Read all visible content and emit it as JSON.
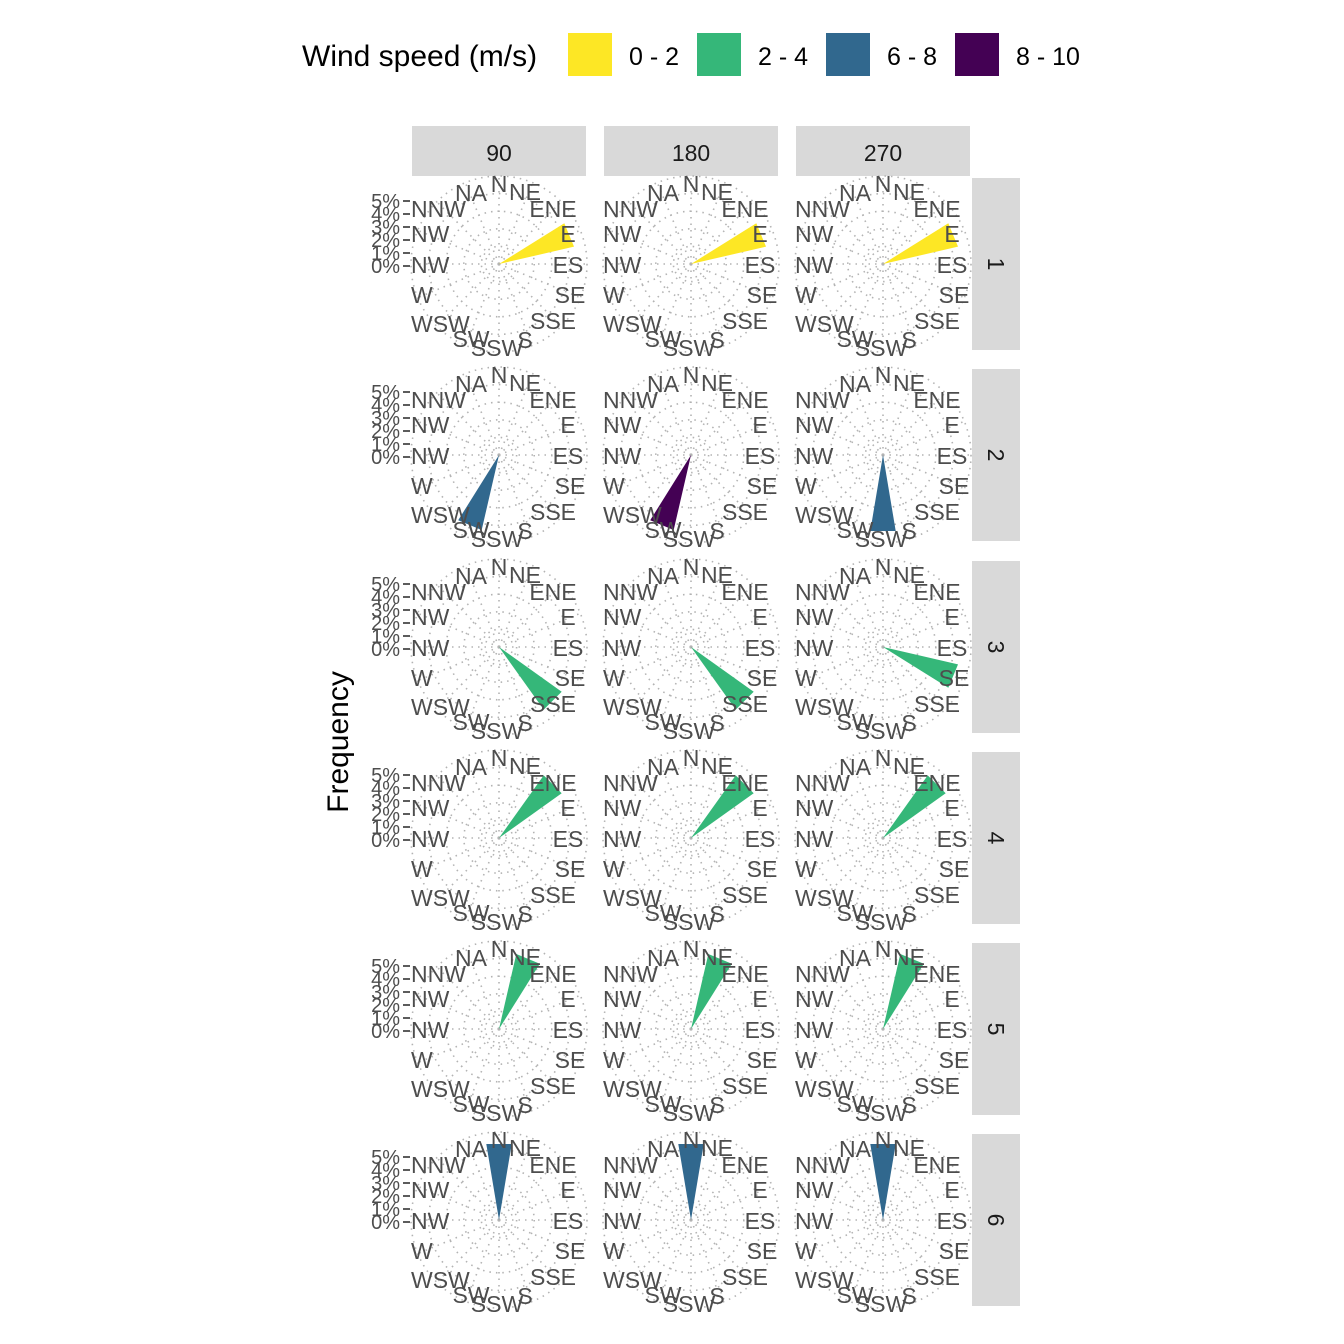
{
  "chart_data": {
    "type": "windrose-facet-grid",
    "legend": {
      "title": "Wind speed (m/s)",
      "position": "top",
      "items": [
        {
          "label": "0 - 2",
          "color": "#FDE725"
        },
        {
          "label": "2 - 4",
          "color": "#35B779"
        },
        {
          "label": "6 - 8",
          "color": "#31688E"
        },
        {
          "label": "8 - 10",
          "color": "#440154"
        }
      ]
    },
    "ylabel": "Frequency",
    "radial_ticks": [
      "0%",
      "1%",
      "2%",
      "3%",
      "4%",
      "5%"
    ],
    "rmax_percent": 6,
    "direction_labels": [
      "N",
      "NE",
      "ENE",
      "E",
      "ES",
      "SE",
      "SSE",
      "S",
      "SSW",
      "SW",
      "WSW",
      "W",
      "NW",
      "NW",
      "NNW",
      "NA"
    ],
    "grid": "dotted",
    "col_labels": [
      "90",
      "180",
      "270"
    ],
    "row_labels": [
      "1",
      "2",
      "3",
      "4",
      "5",
      "6"
    ],
    "panels": [
      {
        "row": "1",
        "col": "90",
        "direction_deg": 67.5,
        "frequency_percent": 5.0,
        "speed_bin": "0 - 2"
      },
      {
        "row": "1",
        "col": "180",
        "direction_deg": 67.5,
        "frequency_percent": 5.0,
        "speed_bin": "0 - 2"
      },
      {
        "row": "1",
        "col": "270",
        "direction_deg": 67.5,
        "frequency_percent": 5.0,
        "speed_bin": "0 - 2"
      },
      {
        "row": "2",
        "col": "90",
        "direction_deg": 202.5,
        "frequency_percent": 5.0,
        "speed_bin": "6 - 8"
      },
      {
        "row": "2",
        "col": "180",
        "direction_deg": 202.5,
        "frequency_percent": 5.0,
        "speed_bin": "8 - 10"
      },
      {
        "row": "2",
        "col": "270",
        "direction_deg": 180,
        "frequency_percent": 5.0,
        "speed_bin": "6 - 8"
      },
      {
        "row": "3",
        "col": "90",
        "direction_deg": 135,
        "frequency_percent": 5.0,
        "speed_bin": "2 - 4"
      },
      {
        "row": "3",
        "col": "180",
        "direction_deg": 135,
        "frequency_percent": 5.0,
        "speed_bin": "2 - 4"
      },
      {
        "row": "3",
        "col": "270",
        "direction_deg": 112.5,
        "frequency_percent": 5.0,
        "speed_bin": "2 - 4"
      },
      {
        "row": "4",
        "col": "90",
        "direction_deg": 45,
        "frequency_percent": 5.0,
        "speed_bin": "2 - 4"
      },
      {
        "row": "4",
        "col": "180",
        "direction_deg": 45,
        "frequency_percent": 5.0,
        "speed_bin": "2 - 4"
      },
      {
        "row": "4",
        "col": "270",
        "direction_deg": 45,
        "frequency_percent": 5.0,
        "speed_bin": "2 - 4"
      },
      {
        "row": "5",
        "col": "90",
        "direction_deg": 22.5,
        "frequency_percent": 5.0,
        "speed_bin": "2 - 4"
      },
      {
        "row": "5",
        "col": "180",
        "direction_deg": 22.5,
        "frequency_percent": 5.0,
        "speed_bin": "2 - 4"
      },
      {
        "row": "5",
        "col": "270",
        "direction_deg": 22.5,
        "frequency_percent": 5.0,
        "speed_bin": "2 - 4"
      },
      {
        "row": "6",
        "col": "90",
        "direction_deg": 0,
        "frequency_percent": 5.0,
        "speed_bin": "6 - 8"
      },
      {
        "row": "6",
        "col": "180",
        "direction_deg": 0,
        "frequency_percent": 5.0,
        "speed_bin": "6 - 8"
      },
      {
        "row": "6",
        "col": "270",
        "direction_deg": 0,
        "frequency_percent": 5.0,
        "speed_bin": "6 - 8"
      }
    ]
  }
}
